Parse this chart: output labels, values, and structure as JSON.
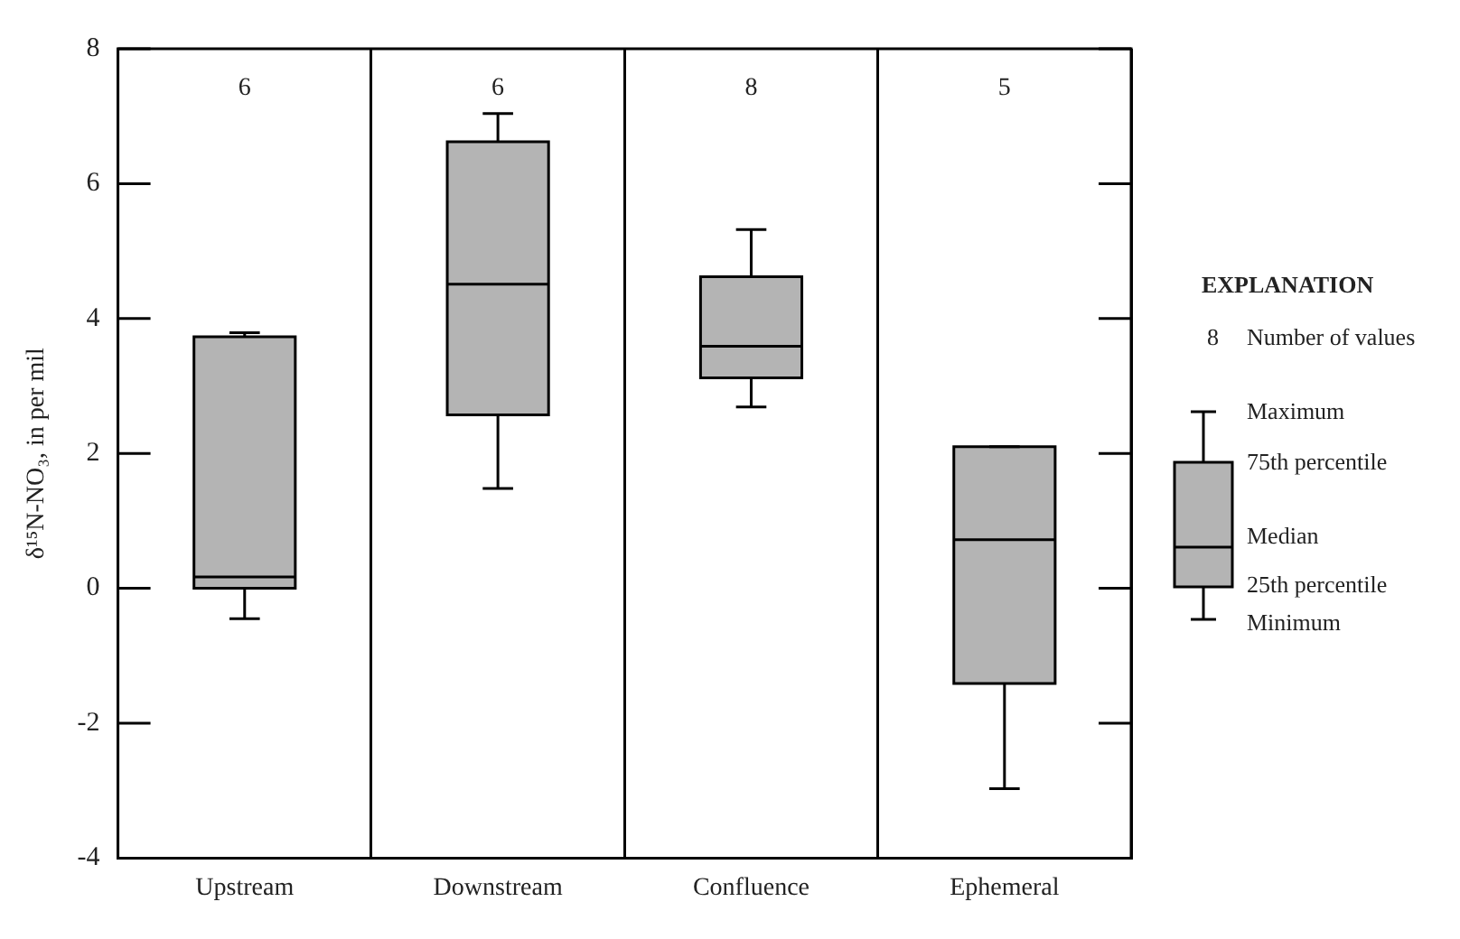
{
  "chart_data": {
    "type": "box",
    "ylabel": "δ¹⁵N-NO₃, in per mil",
    "categories": [
      "Upstream",
      "Downstream",
      "Confluence",
      "Ephemeral"
    ],
    "boxes": [
      {
        "low": -0.45,
        "q1": 0.0,
        "median": 0.17,
        "q3": 3.73,
        "high": 3.79
      },
      {
        "low": 1.48,
        "q1": 2.57,
        "median": 4.51,
        "q3": 6.62,
        "high": 7.04
      },
      {
        "low": 2.69,
        "q1": 3.12,
        "median": 3.59,
        "q3": 4.62,
        "high": 5.32
      },
      {
        "low": -2.97,
        "q1": -1.41,
        "median": 0.72,
        "q3": 2.1,
        "high": 2.1
      }
    ],
    "color": "#b4b4b4",
    "ylim": [
      -4,
      8
    ],
    "yticks": [
      -4,
      -2,
      0,
      2,
      4,
      6,
      8
    ],
    "grid": "x",
    "annotations": [
      "6",
      "6",
      "8",
      "5",
      "EXPLANATION",
      "8",
      "Number of values",
      "Maximum",
      "75th percentile",
      "Median",
      "25th percentile",
      "Minimum"
    ]
  }
}
